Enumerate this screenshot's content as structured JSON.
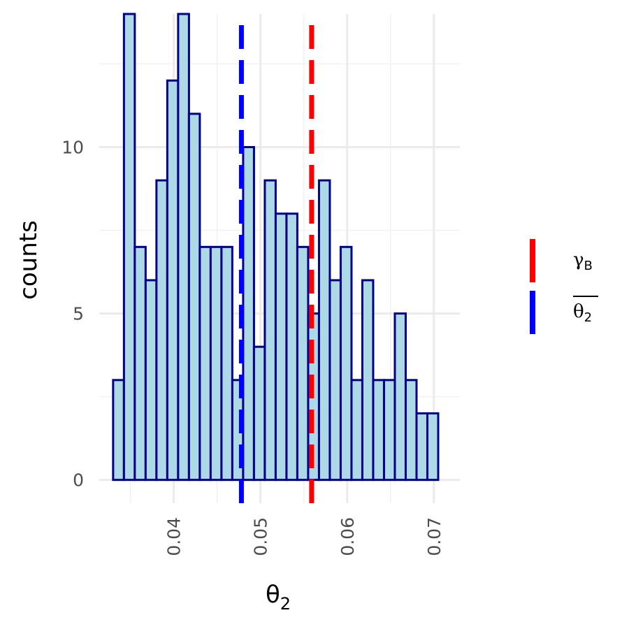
{
  "chart_data": {
    "type": "bar",
    "subtype": "histogram",
    "xlabel_base": "θ",
    "xlabel_sub": "2",
    "ylabel": "counts",
    "xlim": [
      0.0314,
      0.073
    ],
    "ylim": [
      -0.7,
      14.0
    ],
    "x_ticks": [
      0.04,
      0.05,
      0.06,
      0.07
    ],
    "x_tick_labels": [
      "0.04",
      "0.05",
      "0.06",
      "0.07"
    ],
    "y_ticks": [
      0,
      5,
      10
    ],
    "y_tick_labels": [
      "0",
      "5",
      "10"
    ],
    "bin_start": 0.033,
    "bin_width": 0.00125,
    "counts": [
      3,
      14,
      7,
      6,
      9,
      12,
      14,
      11,
      7,
      7,
      7,
      3,
      10,
      4,
      9,
      8,
      8,
      7,
      5,
      9,
      6,
      7,
      3,
      6,
      3,
      3,
      5,
      3,
      2,
      2
    ],
    "vlines": [
      {
        "x": 0.0559,
        "color": "#ff0000",
        "style": "dashed"
      },
      {
        "x": 0.0478,
        "color": "#0000ff",
        "style": "dashed"
      }
    ],
    "legend": {
      "position": "right",
      "entries": [
        {
          "label_base": "γ",
          "label_sub": "B",
          "overline": false,
          "color": "#ff0000"
        },
        {
          "label_base": "θ",
          "label_sub": "2",
          "overline": true,
          "color": "#0000ff"
        }
      ]
    },
    "fill_color": "#add8e6",
    "outline_color": "#00008b",
    "grid": true
  }
}
